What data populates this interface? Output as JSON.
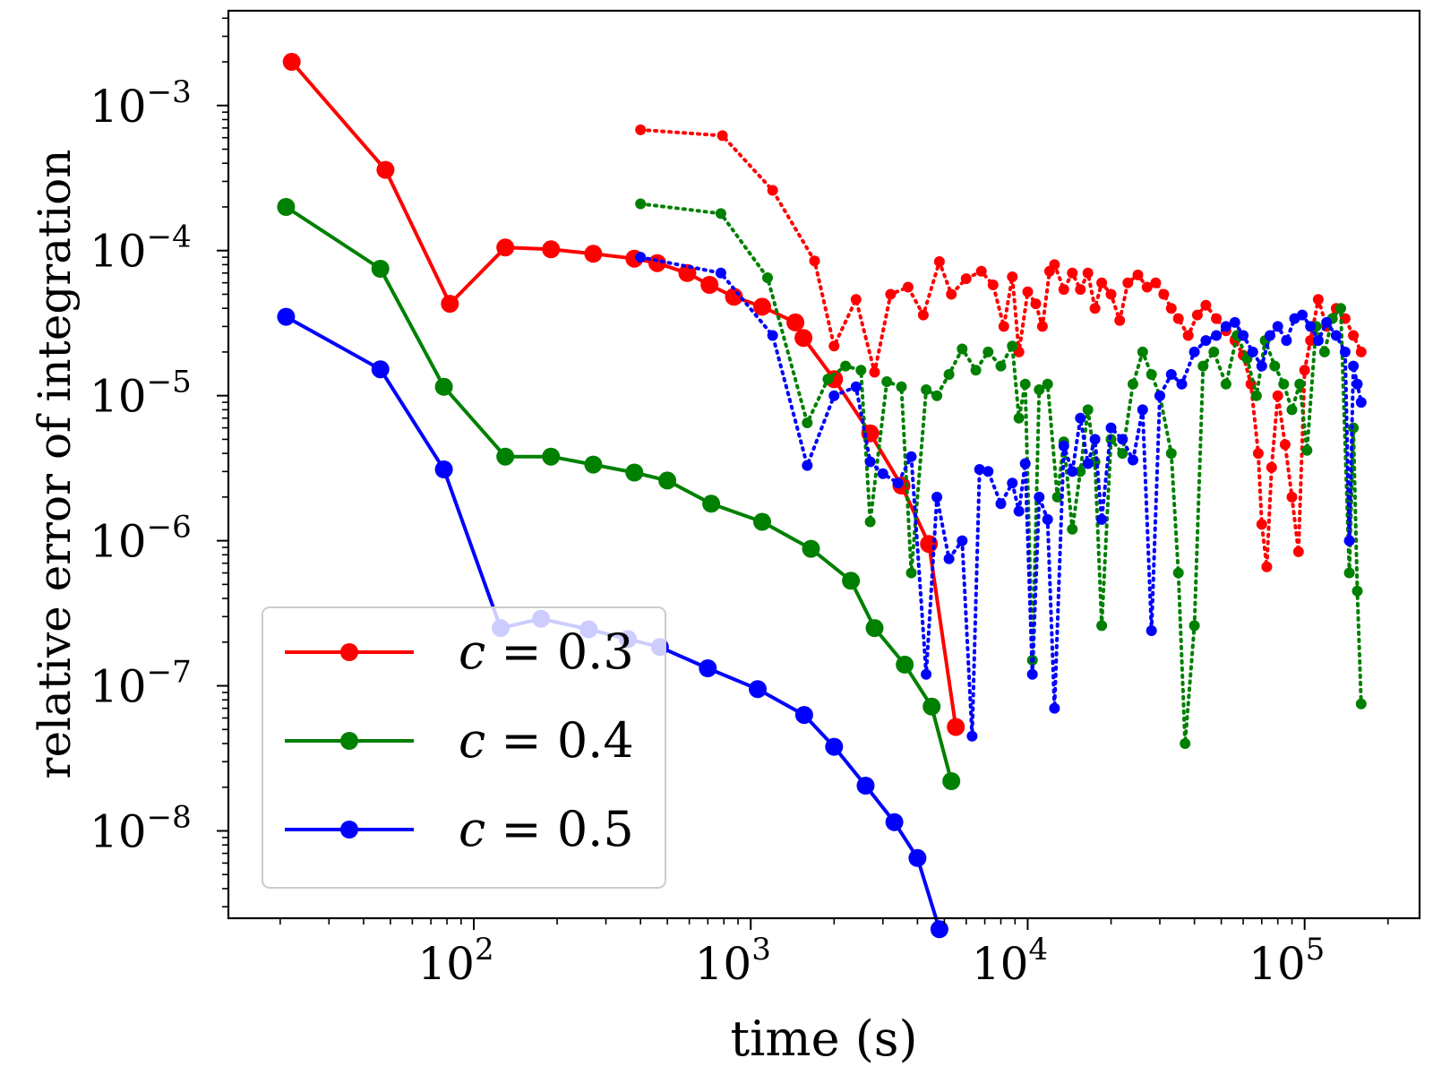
{
  "chart_data": {
    "type": "line",
    "xscale": "log",
    "yscale": "log",
    "xlim": [
      13,
      260000
    ],
    "ylim": [
      2.5e-09,
      0.0045
    ],
    "xlabel": "time (s)",
    "ylabel": "relative error of integration",
    "xticks": [
      {
        "value": 100,
        "base": "10",
        "exp": "2"
      },
      {
        "value": 1000,
        "base": "10",
        "exp": "3"
      },
      {
        "value": 10000,
        "base": "10",
        "exp": "4"
      },
      {
        "value": 100000,
        "base": "10",
        "exp": "5"
      }
    ],
    "yticks": [
      {
        "value": 1e-08,
        "base": "10",
        "exp": "−8"
      },
      {
        "value": 1e-07,
        "base": "10",
        "exp": "−7"
      },
      {
        "value": 1e-06,
        "base": "10",
        "exp": "−6"
      },
      {
        "value": 1e-05,
        "base": "10",
        "exp": "−5"
      },
      {
        "value": 0.0001,
        "base": "10",
        "exp": "−4"
      },
      {
        "value": 0.001,
        "base": "10",
        "exp": "−3"
      }
    ],
    "legend": {
      "position": "lower-left",
      "entries": [
        {
          "var": "c",
          "text": " = 0.3",
          "color": "#ff0000"
        },
        {
          "var": "c",
          "text": " = 0.4",
          "color": "#008000"
        },
        {
          "var": "c",
          "text": " = 0.5",
          "color": "#0000ff"
        }
      ]
    },
    "series": [
      {
        "color": "#ff0000",
        "style": "solid",
        "points": [
          [
            22,
            0.002
          ],
          [
            48,
            0.00036
          ],
          [
            82,
            4.3e-05
          ],
          [
            130,
            0.000105
          ],
          [
            190,
            0.000102
          ],
          [
            270,
            9.5e-05
          ],
          [
            380,
            8.8e-05
          ],
          [
            460,
            8.2e-05
          ],
          [
            590,
            7e-05
          ],
          [
            710,
            5.8e-05
          ],
          [
            870,
            4.8e-05
          ],
          [
            1100,
            4.1e-05
          ],
          [
            1450,
            3.2e-05
          ],
          [
            1550,
            2.5e-05
          ],
          [
            2000,
            1.3e-05
          ],
          [
            2700,
            5.5e-06
          ],
          [
            3500,
            2.4e-06
          ],
          [
            4400,
            9.5e-07
          ],
          [
            5500,
            5.2e-08
          ]
        ]
      },
      {
        "color": "#008000",
        "style": "solid",
        "points": [
          [
            21,
            0.0002
          ],
          [
            46,
            7.5e-05
          ],
          [
            78,
            1.15e-05
          ],
          [
            130,
            3.8e-06
          ],
          [
            190,
            3.8e-06
          ],
          [
            270,
            3.35e-06
          ],
          [
            380,
            2.95e-06
          ],
          [
            500,
            2.6e-06
          ],
          [
            720,
            1.8e-06
          ],
          [
            1100,
            1.35e-06
          ],
          [
            1650,
            8.8e-07
          ],
          [
            2300,
            5.3e-07
          ],
          [
            2800,
            2.5e-07
          ],
          [
            3600,
            1.4e-07
          ],
          [
            4500,
            7.2e-08
          ],
          [
            5300,
            2.2e-08
          ]
        ]
      },
      {
        "color": "#0000ff",
        "style": "solid",
        "points": [
          [
            21,
            3.5e-05
          ],
          [
            46,
            1.52e-05
          ],
          [
            78,
            3.1e-06
          ],
          [
            125,
            2.5e-07
          ],
          [
            175,
            2.9e-07
          ],
          [
            260,
            2.45e-07
          ],
          [
            360,
            2.1e-07
          ],
          [
            470,
            1.85e-07
          ],
          [
            700,
            1.32e-07
          ],
          [
            1060,
            9.5e-08
          ],
          [
            1560,
            6.3e-08
          ],
          [
            2000,
            3.8e-08
          ],
          [
            2600,
            2.05e-08
          ],
          [
            3300,
            1.15e-08
          ],
          [
            4000,
            6.5e-09
          ],
          [
            4800,
            2.1e-09
          ]
        ]
      },
      {
        "color": "#ff0000",
        "style": "dotted",
        "points": [
          [
            400,
            0.00068
          ],
          [
            790,
            0.00062
          ],
          [
            1200,
            0.00026
          ],
          [
            1700,
            8.5e-05
          ],
          [
            2000,
            2.2e-05
          ],
          [
            2400,
            4.6e-05
          ],
          [
            2800,
            1.45e-05
          ],
          [
            3200,
            5e-05
          ],
          [
            3700,
            5.6e-05
          ],
          [
            4200,
            3.6e-05
          ],
          [
            4800,
            8.4e-05
          ],
          [
            5300,
            5e-05
          ],
          [
            6000,
            6.4e-05
          ],
          [
            6800,
            7.2e-05
          ],
          [
            7500,
            5.8e-05
          ],
          [
            8200,
            3e-05
          ],
          [
            8800,
            6.6e-05
          ],
          [
            9300,
            2e-05
          ],
          [
            10000,
            5.2e-05
          ],
          [
            10700,
            4.3e-05
          ],
          [
            11300,
            3e-05
          ],
          [
            12000,
            7.2e-05
          ],
          [
            12500,
            8e-05
          ],
          [
            13500,
            5.4e-05
          ],
          [
            14500,
            7e-05
          ],
          [
            15500,
            5.4e-05
          ],
          [
            16500,
            7e-05
          ],
          [
            17500,
            4e-05
          ],
          [
            18500,
            6e-05
          ],
          [
            20000,
            5e-05
          ],
          [
            21500,
            3.3e-05
          ],
          [
            23000,
            6e-05
          ],
          [
            25000,
            6.8e-05
          ],
          [
            27000,
            5.6e-05
          ],
          [
            29000,
            6e-05
          ],
          [
            31000,
            5e-05
          ],
          [
            33000,
            4e-05
          ],
          [
            35000,
            3.4e-05
          ],
          [
            38000,
            2.6e-05
          ],
          [
            41000,
            3.6e-05
          ],
          [
            44000,
            4.2e-05
          ],
          [
            48000,
            3.4e-05
          ],
          [
            52000,
            2.8e-05
          ],
          [
            56000,
            2.4e-05
          ],
          [
            60000,
            1.9e-05
          ],
          [
            64000,
            1.2e-05
          ],
          [
            68000,
            4e-06
          ],
          [
            70000,
            1.3e-06
          ],
          [
            73000,
            6.6e-07
          ],
          [
            76000,
            3.2e-06
          ],
          [
            80000,
            1e-05
          ],
          [
            85000,
            4.6e-06
          ],
          [
            90000,
            2e-06
          ],
          [
            95000,
            8.4e-07
          ],
          [
            100000,
            1.5e-05
          ],
          [
            105000,
            2.4e-05
          ],
          [
            112000,
            4.6e-05
          ],
          [
            120000,
            3e-05
          ],
          [
            130000,
            4e-05
          ],
          [
            140000,
            3.4e-05
          ],
          [
            150000,
            2.6e-05
          ],
          [
            160000,
            2e-05
          ]
        ]
      },
      {
        "color": "#008000",
        "style": "dotted",
        "points": [
          [
            400,
            0.00021
          ],
          [
            780,
            0.00018
          ],
          [
            1150,
            6.5e-05
          ],
          [
            1600,
            6.5e-06
          ],
          [
            1900,
            1.3e-05
          ],
          [
            2200,
            1.6e-05
          ],
          [
            2500,
            1.5e-05
          ],
          [
            2700,
            1.35e-06
          ],
          [
            3100,
            1.25e-05
          ],
          [
            3500,
            1.15e-05
          ],
          [
            3800,
            6e-07
          ],
          [
            4300,
            1.1e-05
          ],
          [
            4700,
            1e-05
          ],
          [
            5200,
            1.4e-05
          ],
          [
            5800,
            2.1e-05
          ],
          [
            6500,
            1.5e-05
          ],
          [
            7200,
            2e-05
          ],
          [
            8000,
            1.6e-05
          ],
          [
            8800,
            2.2e-05
          ],
          [
            9300,
            7e-06
          ],
          [
            9800,
            1.2e-05
          ],
          [
            10400,
            1.5e-07
          ],
          [
            11000,
            1.1e-05
          ],
          [
            11800,
            1.2e-05
          ],
          [
            12800,
            2e-06
          ],
          [
            13500,
            4.8e-06
          ],
          [
            14500,
            1.2e-06
          ],
          [
            15500,
            3e-06
          ],
          [
            16500,
            8e-06
          ],
          [
            17500,
            3.5e-06
          ],
          [
            18500,
            2.6e-07
          ],
          [
            20000,
            5e-06
          ],
          [
            22000,
            4e-06
          ],
          [
            24000,
            1.2e-05
          ],
          [
            26000,
            2e-05
          ],
          [
            28000,
            1.4e-05
          ],
          [
            30000,
            1e-05
          ],
          [
            33000,
            4e-06
          ],
          [
            35000,
            6e-07
          ],
          [
            37000,
            4e-08
          ],
          [
            40000,
            2.6e-07
          ],
          [
            43000,
            1.6e-05
          ],
          [
            47000,
            2e-05
          ],
          [
            52000,
            1.2e-05
          ],
          [
            57000,
            2.6e-05
          ],
          [
            62000,
            1.8e-05
          ],
          [
            67000,
            1e-05
          ],
          [
            72000,
            2.4e-05
          ],
          [
            78000,
            1.6e-05
          ],
          [
            84000,
            1.2e-05
          ],
          [
            90000,
            8e-06
          ],
          [
            96000,
            1.2e-05
          ],
          [
            102000,
            4.2e-06
          ],
          [
            110000,
            3e-05
          ],
          [
            118000,
            2e-05
          ],
          [
            126000,
            3.4e-05
          ],
          [
            135000,
            4e-05
          ],
          [
            145000,
            6e-07
          ],
          [
            150000,
            6e-06
          ],
          [
            155000,
            4.5e-07
          ],
          [
            160000,
            7.5e-08
          ]
        ]
      },
      {
        "color": "#0000ff",
        "style": "dotted",
        "points": [
          [
            400,
            9e-05
          ],
          [
            780,
            7e-05
          ],
          [
            1200,
            2.6e-05
          ],
          [
            1600,
            3.3e-06
          ],
          [
            2000,
            1e-05
          ],
          [
            2400,
            1.15e-05
          ],
          [
            2700,
            3.5e-06
          ],
          [
            3000,
            2.9e-06
          ],
          [
            3400,
            2.5e-06
          ],
          [
            3800,
            3.8e-06
          ],
          [
            4300,
            1.2e-07
          ],
          [
            4700,
            2e-06
          ],
          [
            5200,
            7.5e-07
          ],
          [
            5800,
            1e-06
          ],
          [
            6300,
            4.5e-08
          ],
          [
            6700,
            3.1e-06
          ],
          [
            7200,
            3e-06
          ],
          [
            8000,
            1.8e-06
          ],
          [
            8800,
            2.5e-06
          ],
          [
            9300,
            1.6e-06
          ],
          [
            9800,
            3.4e-06
          ],
          [
            10400,
            1.2e-07
          ],
          [
            11000,
            2e-06
          ],
          [
            11800,
            1.4e-06
          ],
          [
            12500,
            7e-08
          ],
          [
            13500,
            4.5e-06
          ],
          [
            14500,
            3e-06
          ],
          [
            15500,
            7e-06
          ],
          [
            16500,
            3.4e-06
          ],
          [
            17500,
            5e-06
          ],
          [
            18500,
            1.4e-06
          ],
          [
            20000,
            6e-06
          ],
          [
            22000,
            5e-06
          ],
          [
            24000,
            3.6e-06
          ],
          [
            26000,
            8e-06
          ],
          [
            28000,
            2.4e-07
          ],
          [
            30000,
            1e-05
          ],
          [
            33000,
            1.4e-05
          ],
          [
            36000,
            1.2e-05
          ],
          [
            40000,
            2e-05
          ],
          [
            44000,
            2.4e-05
          ],
          [
            48000,
            2.6e-05
          ],
          [
            52000,
            3e-05
          ],
          [
            56000,
            3.2e-05
          ],
          [
            60000,
            2.6e-05
          ],
          [
            65000,
            2e-05
          ],
          [
            70000,
            1.6e-05
          ],
          [
            75000,
            2.6e-05
          ],
          [
            80000,
            3e-05
          ],
          [
            86000,
            2.4e-05
          ],
          [
            92000,
            3.4e-05
          ],
          [
            98000,
            3.6e-05
          ],
          [
            105000,
            3e-05
          ],
          [
            112000,
            2.4e-05
          ],
          [
            120000,
            3.2e-05
          ],
          [
            130000,
            2.6e-05
          ],
          [
            140000,
            2e-05
          ],
          [
            145000,
            1e-06
          ],
          [
            150000,
            1.6e-05
          ],
          [
            155000,
            1.2e-05
          ],
          [
            160000,
            9e-06
          ]
        ]
      }
    ]
  }
}
